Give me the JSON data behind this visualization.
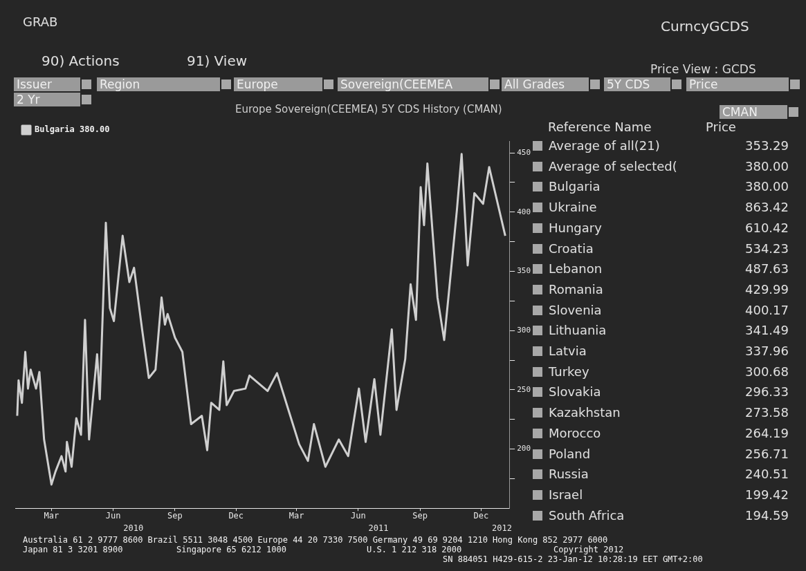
{
  "chart_data": {
    "type": "line",
    "title": "Europe Sovereign(CEEMEA) 5Y CDS History (CMAN)",
    "series": [
      {
        "name": "Bulgaria 380.00",
        "color": "#cfcfcf",
        "x": [
          "2010-01-23",
          "2010-01-25",
          "2010-01-30",
          "2010-02-04",
          "2010-02-08",
          "2010-02-12",
          "2010-02-20",
          "2010-02-25",
          "2010-03-04",
          "2010-03-15",
          "2010-03-21",
          "2010-03-30",
          "2010-04-05",
          "2010-04-07",
          "2010-04-14",
          "2010-04-21",
          "2010-04-28",
          "2010-05-04",
          "2010-05-10",
          "2010-05-22",
          "2010-05-26",
          "2010-06-04",
          "2010-06-10",
          "2010-06-16",
          "2010-06-29",
          "2010-07-09",
          "2010-07-16",
          "2010-07-28",
          "2010-08-07",
          "2010-08-17",
          "2010-08-26",
          "2010-08-31",
          "2010-09-04",
          "2010-09-15",
          "2010-09-26",
          "2010-10-09",
          "2010-10-25",
          "2010-11-02",
          "2010-11-08",
          "2010-11-20",
          "2010-11-26",
          "2010-12-01",
          "2010-12-12",
          "2010-12-29",
          "2011-01-04",
          "2011-01-31",
          "2011-02-14",
          "2011-03-03",
          "2011-03-19",
          "2011-04-01",
          "2011-04-10",
          "2011-04-27",
          "2011-05-17",
          "2011-05-31",
          "2011-06-16",
          "2011-06-26",
          "2011-07-09",
          "2011-07-18",
          "2011-08-04",
          "2011-08-11",
          "2011-08-24",
          "2011-09-01",
          "2011-09-09",
          "2011-09-16",
          "2011-09-21",
          "2011-09-26",
          "2011-10-11",
          "2011-10-21",
          "2011-10-28",
          "2011-11-09",
          "2011-11-16",
          "2011-11-25",
          "2011-12-05",
          "2011-12-18",
          "2011-12-27",
          "2012-01-20"
        ],
        "values": [
          228,
          258,
          239,
          282,
          251,
          267,
          251,
          265,
          208,
          170,
          181,
          194,
          181,
          206,
          185,
          226,
          212,
          309,
          208,
          280,
          242,
          391,
          319,
          308,
          380,
          341,
          353,
          301,
          260,
          267,
          328,
          305,
          314,
          294,
          282,
          221,
          228,
          199,
          239,
          233,
          274,
          237,
          249,
          251,
          262,
          249,
          264,
          233,
          204,
          190,
          221,
          185,
          208,
          194,
          251,
          206,
          259,
          212,
          301,
          233,
          276,
          339,
          309,
          421,
          389,
          441,
          328,
          292,
          332,
          402,
          449,
          355,
          416,
          407,
          438,
          380
        ]
      }
    ],
    "xlim": [
      "2010-01-20",
      "2012-01-26"
    ],
    "xticks": [
      {
        "value": "2010-03-15",
        "label": "Mar"
      },
      {
        "value": "2010-06-15",
        "label": "Jun"
      },
      {
        "value": "2010-09-15",
        "label": "Sep"
      },
      {
        "value": "2010-12-15",
        "label": "Dec"
      },
      {
        "value": "2011-03-15",
        "label": "Mar"
      },
      {
        "value": "2011-06-15",
        "label": "Jun"
      },
      {
        "value": "2011-09-15",
        "label": "Sep"
      },
      {
        "value": "2011-12-15",
        "label": "Dec"
      }
    ],
    "x2lim": [
      "2010-01-20",
      "2012-01-26"
    ],
    "x2ticks": [
      {
        "value": "2010-07-15",
        "label": "2010"
      },
      {
        "value": "2011-07-15",
        "label": "2011"
      },
      {
        "value": "2012-01-15",
        "label": "2012"
      }
    ],
    "ylim": [
      150,
      460
    ],
    "yticks": [
      {
        "value": 175,
        "label": null
      },
      200,
      {
        "value": 225,
        "label": null
      },
      250,
      {
        "value": 275,
        "label": null
      },
      300,
      {
        "value": 325,
        "label": null
      },
      350,
      {
        "value": 375,
        "label": null
      },
      400,
      {
        "value": 425,
        "label": null
      },
      450
    ],
    "legend": "top left",
    "marker": "none",
    "line_style": "solid",
    "annotations": [
      "GRAB",
      "CurncyGCDS",
      "90) Actions",
      "91) View",
      "Price View : GCDS",
      "Issuer",
      "Region",
      "Europe",
      "Sovereign(CEEMEA",
      "All Grades",
      "5Y CDS",
      "Price",
      "2 Yr",
      "CMAN",
      "Reference Name",
      "Price",
      "Average of all(21)",
      "353.29",
      "Average of selected(",
      "380.00",
      "Bulgaria",
      "380.00",
      "Ukraine",
      "863.42",
      "Hungary",
      "610.42",
      "Croatia",
      "534.23",
      "Lebanon",
      "487.63",
      "Romania",
      "429.99",
      "Slovenia",
      "400.17",
      "Lithuania",
      "341.49",
      "Latvia",
      "337.96",
      "Turkey",
      "300.68",
      "Slovakia",
      "296.33",
      "Kazakhstan",
      "273.58",
      "Morocco",
      "264.19",
      "Poland",
      "256.71",
      "Russia",
      "240.51",
      "Israel",
      "199.42",
      "South Africa",
      "194.59",
      "Australia 61 2 9777 8600 Brazil 5511 3048 4500 Europe 44 20 7330 7500 Germany 49 69 9204 1210 Hong Kong 852 2977 6000",
      "Japan 81 3 3201 8900",
      "Singapore 65 6212 1000",
      "U.S. 1 212 318 2000",
      "Copyright 2012",
      "SN 884051 H429-615-2 23-Jan-12 10:28:19 EET  GMT+2:00"
    ]
  }
}
